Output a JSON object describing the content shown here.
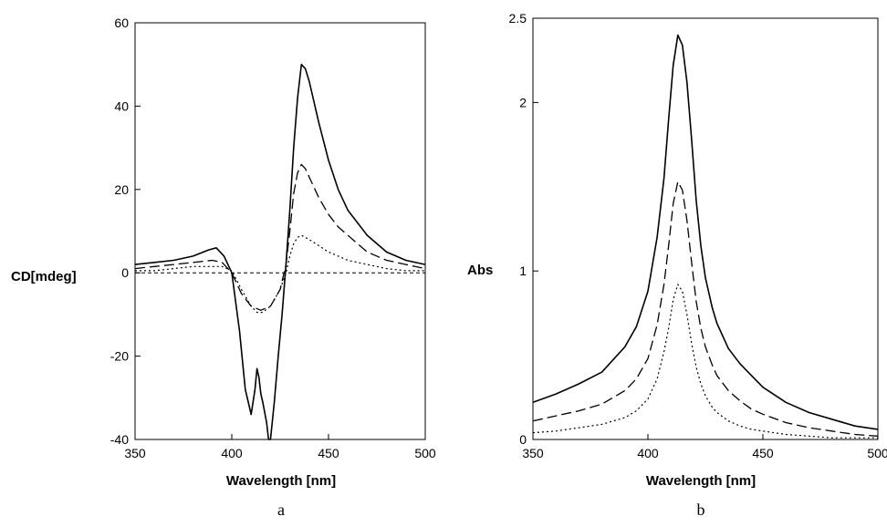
{
  "chart_data": [
    {
      "type": "line",
      "panel_label": "a",
      "xlabel": "Wavelength [nm]",
      "ylabel": "CD[mdeg]",
      "xlim": [
        350,
        500
      ],
      "ylim": [
        -40,
        60
      ],
      "xticks": [
        350,
        400,
        450,
        500
      ],
      "yticks": [
        -40,
        -20,
        0,
        20,
        40,
        60
      ],
      "zero_reference_line": true,
      "grid": false,
      "series": [
        {
          "style": "solid",
          "x": [
            350,
            360,
            370,
            380,
            388,
            392,
            396,
            400,
            404,
            407,
            409,
            410,
            412,
            413,
            414,
            415,
            416,
            418,
            419,
            420,
            422,
            424,
            426,
            428,
            430,
            432,
            434,
            436,
            438,
            440,
            445,
            450,
            455,
            460,
            470,
            480,
            490,
            500
          ],
          "y": [
            2,
            2.5,
            3,
            4,
            5.5,
            6,
            4,
            0,
            -14,
            -28,
            -32,
            -34,
            -28,
            -23,
            -25,
            -29,
            -31,
            -36,
            -40,
            -40,
            -31,
            -20,
            -10,
            2,
            15,
            30,
            42,
            50,
            49,
            46,
            36,
            27,
            20,
            15,
            9,
            5,
            3,
            2
          ]
        },
        {
          "style": "long-dash",
          "x": [
            350,
            360,
            370,
            380,
            390,
            395,
            400,
            405,
            410,
            415,
            420,
            425,
            428,
            430,
            432,
            434,
            436,
            438,
            440,
            445,
            450,
            455,
            460,
            470,
            480,
            490,
            500
          ],
          "y": [
            1,
            1.5,
            2,
            2.5,
            3,
            2.5,
            0,
            -5,
            -8,
            -9,
            -8,
            -4,
            2,
            10,
            19,
            24,
            26,
            25,
            23,
            18,
            14,
            11,
            9,
            5,
            3,
            2,
            1
          ]
        },
        {
          "style": "dotted",
          "x": [
            350,
            360,
            370,
            380,
            390,
            395,
            400,
            405,
            410,
            413,
            416,
            420,
            425,
            428,
            430,
            432,
            434,
            436,
            438,
            440,
            445,
            450,
            455,
            460,
            470,
            480,
            490,
            500
          ],
          "y": [
            0.5,
            0.5,
            1,
            1.5,
            1.5,
            1.5,
            0.5,
            -4,
            -8,
            -9.5,
            -9.5,
            -8,
            -4,
            0,
            4,
            7,
            8.5,
            9,
            8.5,
            8,
            6.5,
            5,
            4,
            3,
            2,
            1,
            0.5,
            0.5
          ]
        }
      ]
    },
    {
      "type": "line",
      "panel_label": "b",
      "xlabel": "Wavelength [nm]",
      "ylabel": "Abs",
      "xlim": [
        350,
        500
      ],
      "ylim": [
        0,
        2.5
      ],
      "xticks": [
        350,
        400,
        450,
        500
      ],
      "ytick_values": [
        0,
        1,
        2,
        2.5
      ],
      "ytick_labels": [
        "0",
        "1",
        "2",
        "2.5"
      ],
      "grid": false,
      "series": [
        {
          "style": "solid",
          "x": [
            350,
            360,
            370,
            380,
            390,
            395,
            400,
            404,
            407,
            409,
            411,
            413,
            415,
            417,
            419,
            421,
            423,
            425,
            428,
            430,
            435,
            440,
            445,
            450,
            460,
            470,
            480,
            490,
            500
          ],
          "y": [
            0.22,
            0.27,
            0.33,
            0.4,
            0.55,
            0.67,
            0.88,
            1.2,
            1.55,
            1.9,
            2.22,
            2.4,
            2.34,
            2.12,
            1.78,
            1.42,
            1.15,
            0.96,
            0.78,
            0.69,
            0.54,
            0.45,
            0.38,
            0.31,
            0.22,
            0.16,
            0.12,
            0.08,
            0.06
          ]
        },
        {
          "style": "long-dash",
          "x": [
            350,
            360,
            370,
            380,
            390,
            395,
            400,
            404,
            407,
            409,
            411,
            413,
            415,
            417,
            419,
            421,
            423,
            425,
            428,
            430,
            435,
            440,
            445,
            450,
            460,
            470,
            480,
            490,
            500
          ],
          "y": [
            0.11,
            0.14,
            0.17,
            0.21,
            0.29,
            0.36,
            0.48,
            0.68,
            0.92,
            1.15,
            1.4,
            1.53,
            1.48,
            1.3,
            1.05,
            0.82,
            0.66,
            0.55,
            0.44,
            0.38,
            0.29,
            0.23,
            0.18,
            0.15,
            0.1,
            0.07,
            0.05,
            0.03,
            0.02
          ]
        },
        {
          "style": "dotted",
          "x": [
            350,
            360,
            370,
            380,
            390,
            395,
            400,
            404,
            407,
            409,
            411,
            413,
            415,
            417,
            419,
            421,
            423,
            425,
            428,
            430,
            435,
            440,
            445,
            450,
            460,
            470,
            480,
            490,
            500
          ],
          "y": [
            0.04,
            0.05,
            0.07,
            0.09,
            0.13,
            0.17,
            0.24,
            0.36,
            0.52,
            0.66,
            0.83,
            0.92,
            0.88,
            0.74,
            0.57,
            0.43,
            0.33,
            0.26,
            0.19,
            0.16,
            0.11,
            0.08,
            0.06,
            0.05,
            0.03,
            0.02,
            0.01,
            0.01,
            0.01
          ]
        }
      ]
    }
  ]
}
